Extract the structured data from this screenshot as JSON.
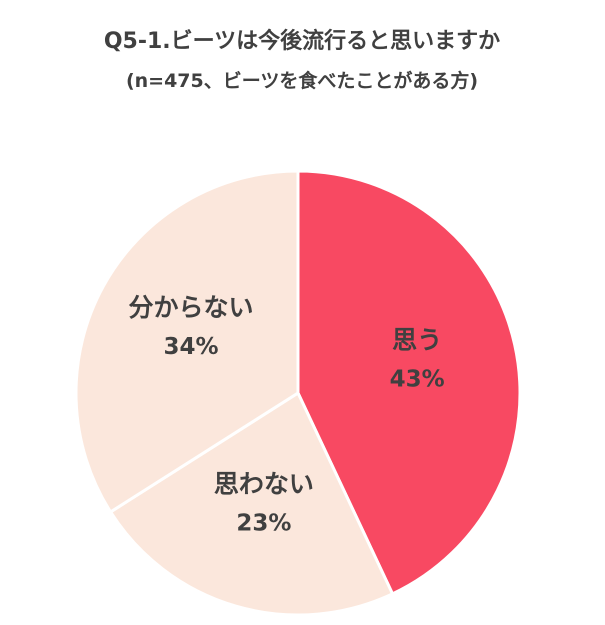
{
  "chart_data": {
    "type": "pie",
    "title": "Q5-1.ビーツは今後流行ると思いますか",
    "subtitle": "(n=475、ビーツを食べたことがある方)",
    "categories": [
      "思う",
      "思わない",
      "分からない"
    ],
    "values": [
      43,
      23,
      34
    ],
    "value_labels": [
      "43%",
      "23%",
      "34%"
    ],
    "colors": [
      "#f84962",
      "#fbe7dc",
      "#fbe7dc"
    ]
  }
}
